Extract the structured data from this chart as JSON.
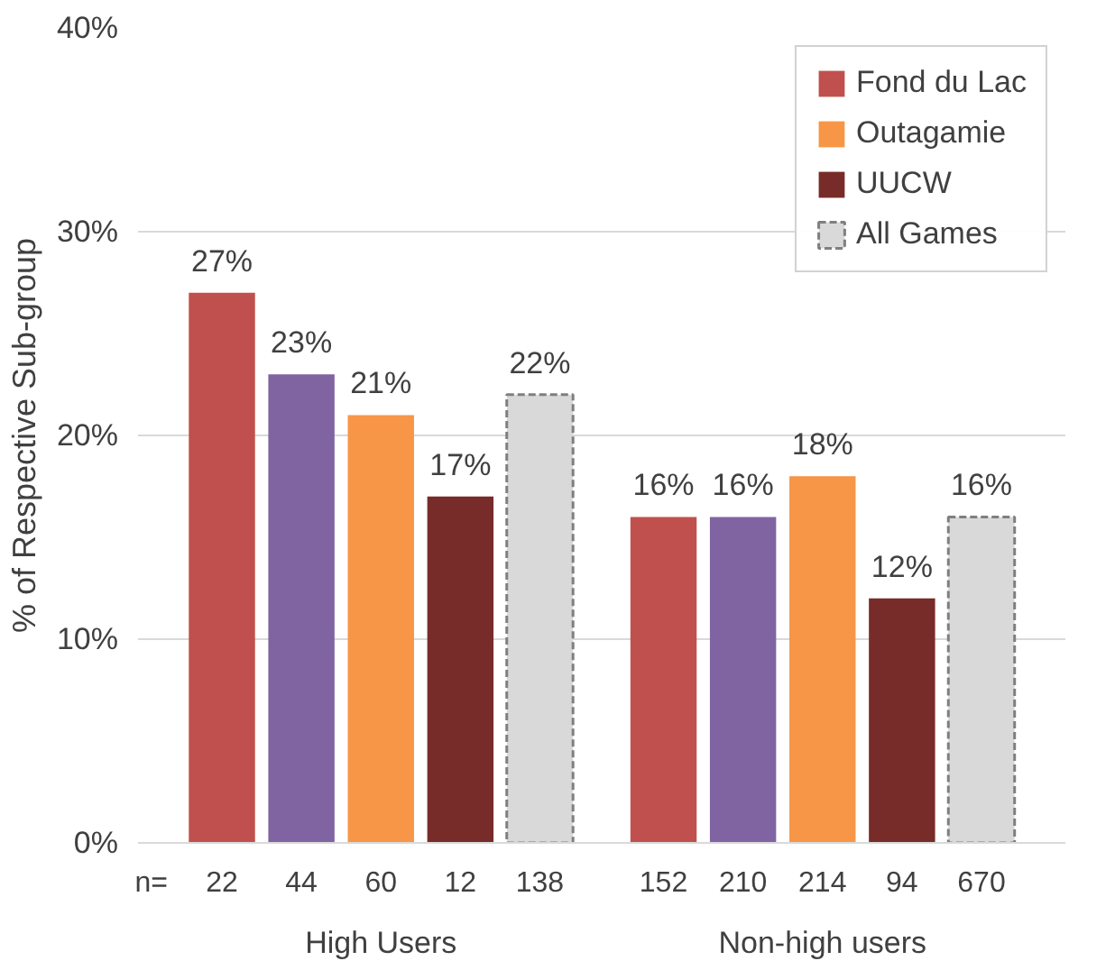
{
  "chart_data": {
    "type": "bar",
    "ylabel": "% of Respective Sub-group",
    "categories": [
      "High Users",
      "Non-high users"
    ],
    "series": [
      {
        "name": "Fond du Lac",
        "color": "#c0504d",
        "values": [
          27,
          16
        ],
        "value_labels": [
          "27%",
          "16%"
        ]
      },
      {
        "color": "#8064a2",
        "values": [
          23,
          16
        ],
        "value_labels": [
          "23%",
          "16%"
        ]
      },
      {
        "name": "Outagamie",
        "color": "#f79646",
        "values": [
          21,
          18
        ],
        "value_labels": [
          "21%",
          "18%"
        ]
      },
      {
        "name": "UUCW",
        "color": "#772c2a",
        "values": [
          17,
          12
        ],
        "value_labels": [
          "17%",
          "12%"
        ]
      },
      {
        "name": "All Games",
        "color": "#d9d9d9",
        "values": [
          22,
          16
        ],
        "value_labels": [
          "22%",
          "16%"
        ],
        "line_style": "dashed"
      }
    ],
    "ylim": [
      0,
      40
    ],
    "yticks": [
      {
        "value": 0,
        "label": "0%"
      },
      {
        "value": 10,
        "label": "10%"
      },
      {
        "value": 20,
        "label": "20%"
      },
      {
        "value": 30,
        "label": "30%"
      },
      {
        "value": 40,
        "label": "40%"
      }
    ],
    "grid": "y",
    "legend": "top right",
    "annotations": [
      "n=",
      "22",
      "44",
      "60",
      "12",
      "138",
      "152",
      "210",
      "214",
      "94",
      "670"
    ]
  }
}
